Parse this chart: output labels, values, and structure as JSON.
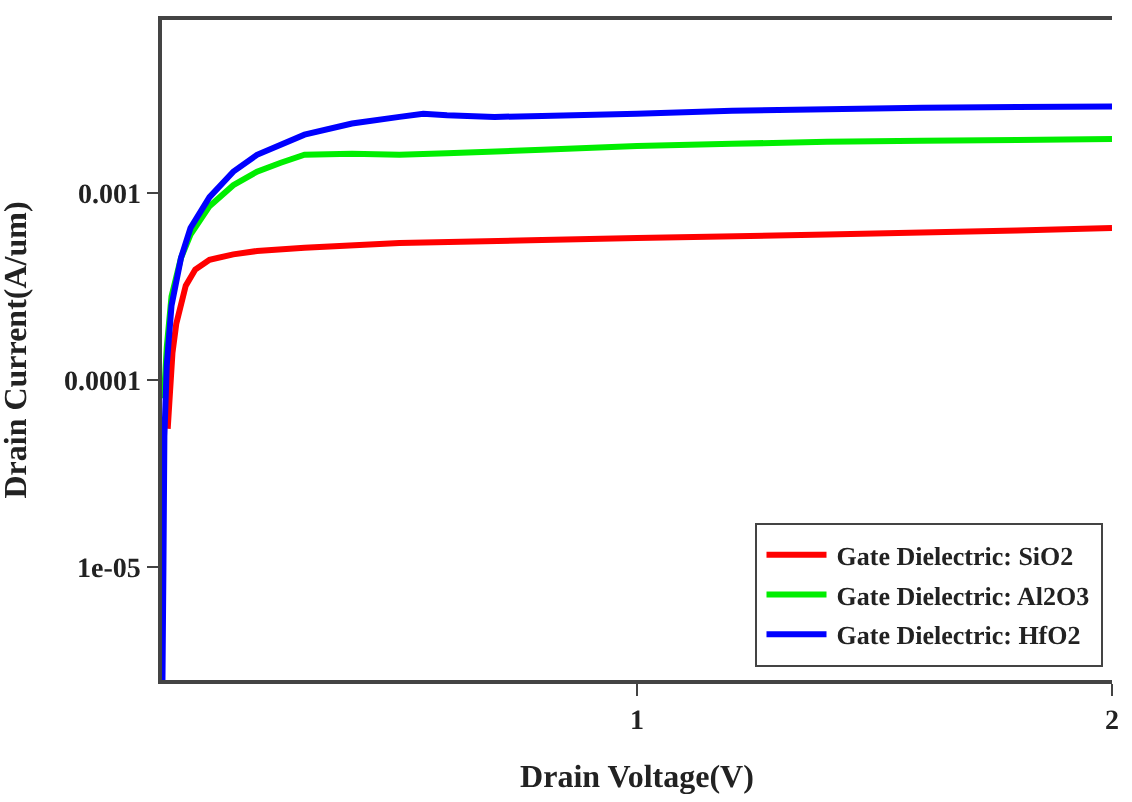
{
  "chart_data": {
    "type": "line",
    "xlabel": "Drain Voltage(V)",
    "ylabel": "Drain Current(A/um)",
    "log": "y",
    "xlim": [
      0,
      2
    ],
    "xticks": [
      1,
      2
    ],
    "ylim": [
      2.5e-06,
      0.0084
    ],
    "yticks": [
      1e-05,
      0.0001,
      0.001
    ],
    "legend": "bottom right",
    "marker": "none",
    "line_style": "solid",
    "series": [
      {
        "name": "Gate Dielectric: SiO2",
        "color": "#ff0000",
        "x": [
          0.012,
          0.016,
          0.022,
          0.03,
          0.05,
          0.07,
          0.1,
          0.15,
          0.2,
          0.3,
          0.5,
          0.8,
          1.0,
          1.4,
          1.8,
          2.0
        ],
        "values": [
          5.5e-05,
          8e-05,
          0.00014,
          0.0002,
          0.00032,
          0.00039,
          0.00044,
          0.00047,
          0.00049,
          0.00051,
          0.00054,
          0.00056,
          0.000575,
          0.0006,
          0.00063,
          0.00065
        ]
      },
      {
        "name": "Gate Dielectric: Al2O3",
        "color": "#00ee00",
        "x": [
          0.004,
          0.01,
          0.02,
          0.04,
          0.06,
          0.1,
          0.15,
          0.2,
          0.25,
          0.3,
          0.4,
          0.5,
          0.6,
          0.8,
          1.0,
          1.2,
          1.4,
          1.6,
          1.8,
          2.0
        ],
        "values": [
          8e-05,
          0.00015,
          0.00028,
          0.00045,
          0.0006,
          0.00085,
          0.0011,
          0.0013,
          0.00145,
          0.0016,
          0.00162,
          0.0016,
          0.00163,
          0.0017,
          0.00178,
          0.00183,
          0.00188,
          0.0019,
          0.00192,
          0.00194
        ]
      },
      {
        "name": "Gate Dielectric: HfO2",
        "color": "#0000ff",
        "x": [
          0.001,
          0.003,
          0.005,
          0.01,
          0.02,
          0.04,
          0.06,
          0.1,
          0.15,
          0.2,
          0.3,
          0.4,
          0.5,
          0.55,
          0.6,
          0.7,
          0.8,
          1.0,
          1.2,
          1.4,
          1.6,
          1.8,
          2.0
        ],
        "values": [
          2.5e-06,
          1e-05,
          5e-05,
          0.00012,
          0.00025,
          0.00045,
          0.00065,
          0.00095,
          0.0013,
          0.0016,
          0.00205,
          0.00235,
          0.00255,
          0.00265,
          0.0026,
          0.00255,
          0.00258,
          0.00265,
          0.00275,
          0.0028,
          0.00285,
          0.00288,
          0.0029
        ]
      }
    ]
  }
}
